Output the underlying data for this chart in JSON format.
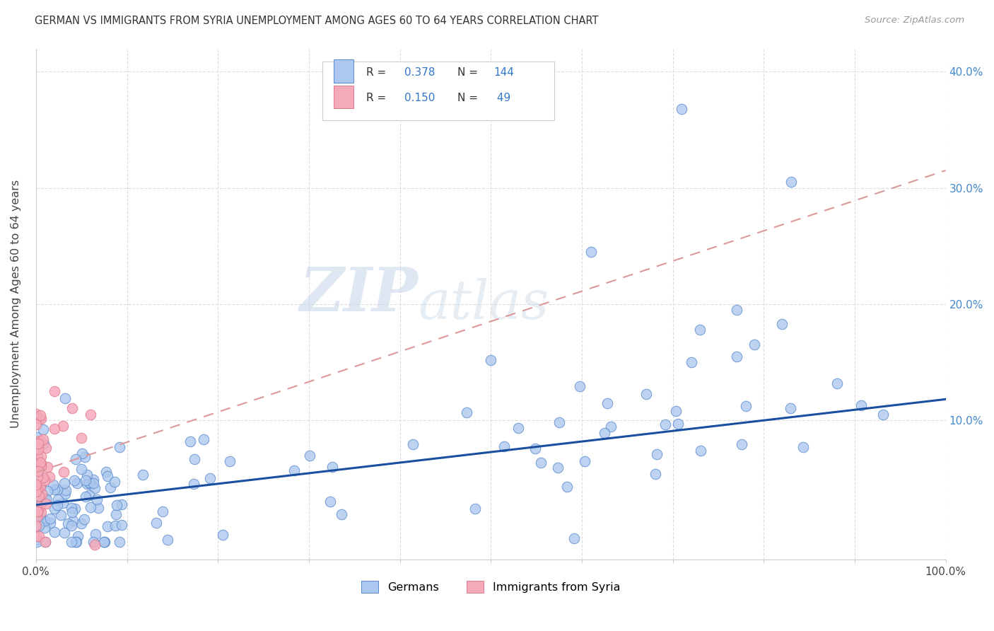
{
  "title": "GERMAN VS IMMIGRANTS FROM SYRIA UNEMPLOYMENT AMONG AGES 60 TO 64 YEARS CORRELATION CHART",
  "source": "Source: ZipAtlas.com",
  "ylabel": "Unemployment Among Ages 60 to 64 years",
  "xlim": [
    0.0,
    1.0
  ],
  "ylim": [
    -0.02,
    0.42
  ],
  "xticks": [
    0.0,
    0.1,
    0.2,
    0.3,
    0.4,
    0.5,
    0.6,
    0.7,
    0.8,
    0.9,
    1.0
  ],
  "xticklabels": [
    "0.0%",
    "",
    "",
    "",
    "",
    "",
    "",
    "",
    "",
    "",
    "100.0%"
  ],
  "yticks": [
    0.0,
    0.1,
    0.2,
    0.3,
    0.4
  ],
  "yticklabels_right": [
    "",
    "10.0%",
    "20.0%",
    "30.0%",
    "40.0%"
  ],
  "german_color": "#adc8ee",
  "german_edge_color": "#5588cc",
  "syria_color": "#f5aabb",
  "syria_edge_color": "#e07788",
  "german_line_color": "#1a4fa0",
  "syria_line_color": "#dd9999",
  "legend_blue_color": "#adc8ee",
  "legend_pink_color": "#f5aabb",
  "R_german": 0.378,
  "N_german": 144,
  "R_syria": 0.15,
  "N_syria": 49,
  "watermark_zip": "ZIP",
  "watermark_atlas": "atlas",
  "german_line_x": [
    0.0,
    1.0
  ],
  "german_line_y": [
    0.027,
    0.118
  ],
  "syria_line_x": [
    0.0,
    1.0
  ],
  "syria_line_y": [
    0.055,
    0.315
  ]
}
